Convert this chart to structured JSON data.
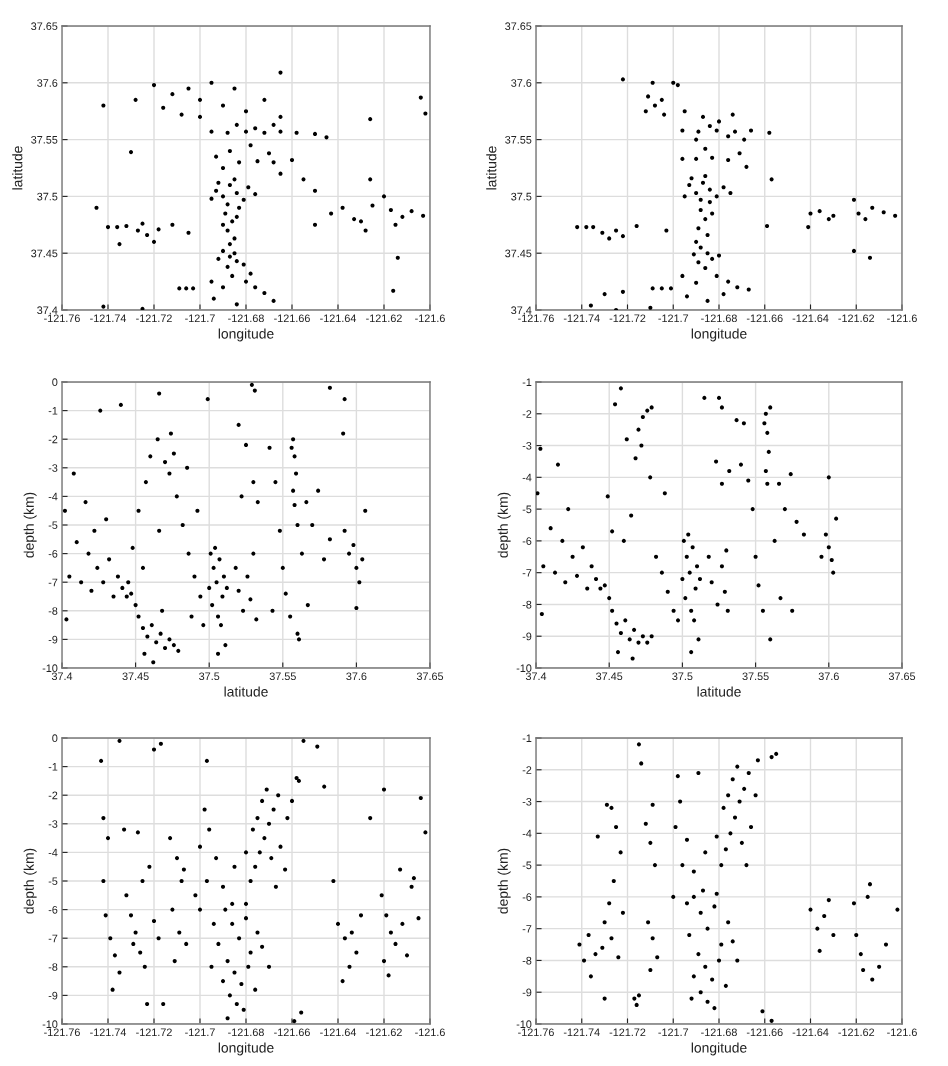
{
  "chart_data": [
    {
      "type": "scatter",
      "xlabel": "longitude",
      "ylabel": "latitude",
      "xlim": [
        -121.76,
        -121.6
      ],
      "ylim": [
        37.4,
        37.65
      ],
      "xticks": [
        -121.76,
        -121.74,
        -121.72,
        -121.7,
        -121.68,
        -121.66,
        -121.64,
        -121.62,
        -121.6
      ],
      "yticks": [
        37.4,
        37.45,
        37.5,
        37.55,
        37.6,
        37.65
      ],
      "grid": true,
      "marker": "circle",
      "series": [
        {
          "color": "#000000",
          "x": [
            -121.693,
            -121.69,
            -121.687,
            -121.684,
            -121.681,
            -121.688,
            -121.692,
            -121.685,
            -121.679,
            -121.695,
            -121.683,
            -121.676,
            -121.689,
            -121.686,
            -121.688,
            -121.685,
            -121.69,
            -121.684,
            -121.687,
            -121.69,
            -121.687,
            -121.684,
            -121.688,
            -121.681,
            -121.692,
            -121.685,
            -121.686,
            -121.68,
            -121.676,
            -121.672,
            -121.69,
            -121.694,
            -121.684,
            -121.668,
            -121.695,
            -121.678,
            -121.709,
            -121.706,
            -121.703,
            -121.69,
            -121.683,
            -121.675,
            -121.668,
            -121.66,
            -121.687,
            -121.678,
            -121.67,
            -121.693,
            -121.665,
            -121.655,
            -121.65,
            -121.695,
            -121.688,
            -121.68,
            -121.672,
            -121.665,
            -121.658,
            -121.676,
            -121.668,
            -121.684,
            -121.65,
            -121.645,
            -121.7,
            -121.705,
            -121.712,
            -121.716,
            -121.708,
            -121.695,
            -121.69,
            -121.68,
            -121.672,
            -121.685,
            -121.72,
            -121.728,
            -121.665,
            -121.7,
            -121.74,
            -121.736,
            -121.732,
            -121.727,
            -121.723,
            -121.725,
            -121.718,
            -121.712,
            -121.705,
            -121.745,
            -121.735,
            -121.72,
            -121.643,
            -121.638,
            -121.633,
            -121.63,
            -121.625,
            -121.62,
            -121.617,
            -121.612,
            -121.608,
            -121.603,
            -121.628,
            -121.615,
            -121.742,
            -121.73,
            -121.626,
            -121.626,
            -121.604,
            -121.602,
            -121.665,
            -121.614,
            -121.616,
            -121.742,
            -121.725,
            -121.65
          ],
          "values": [
            37.505,
            37.5,
            37.51,
            37.503,
            37.497,
            37.493,
            37.512,
            37.515,
            37.508,
            37.498,
            37.49,
            37.502,
            37.485,
            37.478,
            37.47,
            37.463,
            37.475,
            37.482,
            37.458,
            37.452,
            37.447,
            37.443,
            37.438,
            37.44,
            37.445,
            37.45,
            37.43,
            37.425,
            37.42,
            37.415,
            37.42,
            37.41,
            37.405,
            37.408,
            37.425,
            37.432,
            37.419,
            37.419,
            37.419,
            37.525,
            37.53,
            37.531,
            37.53,
            37.532,
            37.54,
            37.545,
            37.538,
            37.535,
            37.52,
            37.515,
            37.505,
            37.557,
            37.556,
            37.557,
            37.556,
            37.557,
            37.556,
            37.56,
            37.563,
            37.563,
            37.555,
            37.552,
            37.585,
            37.595,
            37.59,
            37.578,
            37.572,
            37.6,
            37.58,
            37.575,
            37.585,
            37.595,
            37.598,
            37.585,
            37.57,
            37.57,
            37.473,
            37.473,
            37.474,
            37.47,
            37.466,
            37.476,
            37.471,
            37.475,
            37.468,
            37.49,
            37.458,
            37.46,
            37.485,
            37.49,
            37.48,
            37.478,
            37.492,
            37.5,
            37.488,
            37.482,
            37.487,
            37.483,
            37.47,
            37.475,
            37.58,
            37.539,
            37.515,
            37.568,
            37.587,
            37.573,
            37.609,
            37.446,
            37.417,
            37.403,
            37.401,
            37.475
          ]
        }
      ]
    },
    {
      "type": "scatter",
      "xlabel": "longitude",
      "ylabel": "latitude",
      "xlim": [
        -121.76,
        -121.6
      ],
      "ylim": [
        37.4,
        37.65
      ],
      "xticks": [
        -121.76,
        -121.74,
        -121.72,
        -121.7,
        -121.68,
        -121.66,
        -121.64,
        -121.62,
        -121.6
      ],
      "yticks": [
        37.4,
        37.45,
        37.5,
        37.55,
        37.6,
        37.65
      ],
      "grid": true,
      "marker": "circle",
      "series": [
        {
          "color": "#000000",
          "x": [
            -121.7,
            -121.698,
            -121.709,
            -121.722,
            -121.711,
            -121.708,
            -121.712,
            -121.705,
            -121.704,
            -121.695,
            -121.687,
            -121.68,
            -121.674,
            -121.684,
            -121.696,
            -121.689,
            -121.681,
            -121.673,
            -121.666,
            -121.658,
            -121.676,
            -121.669,
            -121.69,
            -121.696,
            -121.69,
            -121.683,
            -121.676,
            -121.671,
            -121.686,
            -121.668,
            -121.657,
            -121.693,
            -121.69,
            -121.687,
            -121.684,
            -121.681,
            -121.688,
            -121.692,
            -121.678,
            -121.695,
            -121.684,
            -121.675,
            -121.686,
            -121.688,
            -121.686,
            -121.689,
            -121.685,
            -121.683,
            -121.69,
            -121.688,
            -121.685,
            -121.683,
            -121.689,
            -121.68,
            -121.691,
            -121.686,
            -121.681,
            -121.676,
            -121.672,
            -121.69,
            -121.694,
            -121.685,
            -121.667,
            -121.678,
            -121.696,
            -121.709,
            -121.705,
            -121.701,
            -121.742,
            -121.738,
            -121.735,
            -121.731,
            -121.728,
            -121.725,
            -121.722,
            -121.716,
            -121.703,
            -121.659,
            -121.641,
            -121.64,
            -121.636,
            -121.632,
            -121.63,
            -121.621,
            -121.619,
            -121.616,
            -121.613,
            -121.608,
            -121.603,
            -121.621,
            -121.614,
            -121.736,
            -121.73,
            -121.722,
            -121.71,
            -121.725
          ],
          "values": [
            37.6,
            37.598,
            37.6,
            37.603,
            37.588,
            37.58,
            37.575,
            37.585,
            37.572,
            37.575,
            37.57,
            37.566,
            37.572,
            37.562,
            37.558,
            37.557,
            37.558,
            37.557,
            37.558,
            37.556,
            37.553,
            37.55,
            37.55,
            37.533,
            37.533,
            37.534,
            37.532,
            37.538,
            37.542,
            37.526,
            37.515,
            37.51,
            37.503,
            37.512,
            37.506,
            37.5,
            37.497,
            37.516,
            37.508,
            37.5,
            37.495,
            37.503,
            37.518,
            37.488,
            37.48,
            37.472,
            37.466,
            37.485,
            37.46,
            37.455,
            37.45,
            37.445,
            37.442,
            37.448,
            37.449,
            37.437,
            37.43,
            37.425,
            37.42,
            37.424,
            37.412,
            37.408,
            37.418,
            37.414,
            37.43,
            37.419,
            37.419,
            37.419,
            37.473,
            37.473,
            37.473,
            37.468,
            37.463,
            37.47,
            37.465,
            37.474,
            37.47,
            37.474,
            37.473,
            37.485,
            37.487,
            37.48,
            37.483,
            37.497,
            37.485,
            37.48,
            37.49,
            37.486,
            37.483,
            37.452,
            37.446,
            37.404,
            37.414,
            37.416,
            37.402,
            37.4
          ]
        }
      ]
    },
    {
      "type": "scatter",
      "xlabel": "latitude",
      "ylabel": "depth (km)",
      "xlim": [
        37.4,
        37.65
      ],
      "ylim": [
        -10,
        0
      ],
      "xticks": [
        37.4,
        37.45,
        37.5,
        37.55,
        37.6,
        37.65
      ],
      "yticks": [
        -10,
        -9,
        -8,
        -7,
        -6,
        -5,
        -4,
        -3,
        -2,
        -1,
        0
      ],
      "grid": true,
      "marker": "circle",
      "series": [
        {
          "color": "#000000",
          "x": [
            37.402,
            37.405,
            37.408,
            37.41,
            37.413,
            37.416,
            37.418,
            37.42,
            37.422,
            37.424,
            37.403,
            37.428,
            37.43,
            37.432,
            37.435,
            37.438,
            37.441,
            37.444,
            37.447,
            37.45,
            37.445,
            37.452,
            37.455,
            37.458,
            37.461,
            37.464,
            37.467,
            37.47,
            37.473,
            37.476,
            37.479,
            37.456,
            37.462,
            37.468,
            37.448,
            37.452,
            37.457,
            37.46,
            37.465,
            37.47,
            37.473,
            37.474,
            37.476,
            37.478,
            37.482,
            37.486,
            37.49,
            37.494,
            37.496,
            37.488,
            37.485,
            37.492,
            37.466,
            37.455,
            37.501,
            37.503,
            37.505,
            37.507,
            37.509,
            37.502,
            37.506,
            37.51,
            37.504,
            37.508,
            37.512,
            37.5,
            37.511,
            37.506,
            37.518,
            37.52,
            37.523,
            37.526,
            37.528,
            37.532,
            37.53,
            37.522,
            37.525,
            37.53,
            37.533,
            37.529,
            37.52,
            37.557,
            37.558,
            37.559,
            37.557,
            37.558,
            37.56,
            37.556,
            37.545,
            37.548,
            37.55,
            37.552,
            37.555,
            37.56,
            37.563,
            37.566,
            37.57,
            37.574,
            37.578,
            37.582,
            37.567,
            37.561,
            37.541,
            37.543,
            37.592,
            37.595,
            37.598,
            37.6,
            37.602,
            37.604,
            37.606,
            37.6,
            37.591,
            37.582,
            37.592,
            37.466,
            37.426,
            37.44,
            37.499,
            37.531
          ],
          "values": [
            -4.5,
            -6.8,
            -3.2,
            -5.6,
            -7.0,
            -4.2,
            -6.0,
            -7.3,
            -5.2,
            -6.5,
            -8.3,
            -7.0,
            -4.8,
            -6.2,
            -7.5,
            -6.8,
            -7.2,
            -7.5,
            -7.4,
            -7.8,
            -7.0,
            -8.2,
            -8.6,
            -8.9,
            -8.5,
            -9.1,
            -8.8,
            -9.3,
            -9.0,
            -9.2,
            -9.4,
            -9.5,
            -9.8,
            -8.0,
            -5.8,
            -4.5,
            -3.5,
            -2.6,
            -2.0,
            -2.8,
            -3.2,
            -1.8,
            -2.5,
            -4.0,
            -5.0,
            -6.0,
            -6.8,
            -7.5,
            -8.5,
            -8.2,
            -3.0,
            -4.5,
            -5.2,
            -6.5,
            -6.0,
            -6.5,
            -7.0,
            -6.2,
            -7.5,
            -7.8,
            -8.2,
            -6.8,
            -5.8,
            -8.5,
            -7.2,
            -7.2,
            -9.2,
            -9.5,
            -6.5,
            -7.3,
            -8.0,
            -6.8,
            -7.6,
            -8.3,
            -6.0,
            -4.0,
            -2.2,
            -3.5,
            -4.2,
            -0.1,
            -1.5,
            -2.0,
            -2.6,
            -3.2,
            -3.8,
            -4.3,
            -5.0,
            -2.3,
            -3.5,
            -5.2,
            -6.5,
            -7.4,
            -8.2,
            -8.8,
            -6.0,
            -4.2,
            -5.0,
            -3.8,
            -6.2,
            -5.5,
            -7.8,
            -9.0,
            -2.3,
            -8.0,
            -5.2,
            -6.0,
            -5.7,
            -6.5,
            -7.0,
            -6.2,
            -4.5,
            -7.9,
            -1.8,
            -0.2,
            -0.6,
            -0.4,
            -1.0,
            -0.8,
            -0.6,
            -0.3
          ]
        }
      ]
    },
    {
      "type": "scatter",
      "xlabel": "latitude",
      "ylabel": "depth (km)",
      "xlim": [
        37.4,
        37.65
      ],
      "ylim": [
        -10,
        -1
      ],
      "xticks": [
        37.4,
        37.45,
        37.5,
        37.55,
        37.6,
        37.65
      ],
      "yticks": [
        -10,
        -9,
        -8,
        -7,
        -6,
        -5,
        -4,
        -3,
        -2,
        -1
      ],
      "grid": true,
      "marker": "circle",
      "series": [
        {
          "color": "#000000",
          "x": [
            37.401,
            37.403,
            37.405,
            37.41,
            37.413,
            37.415,
            37.418,
            37.42,
            37.422,
            37.425,
            37.428,
            37.432,
            37.435,
            37.404,
            37.438,
            37.441,
            37.444,
            37.447,
            37.45,
            37.452,
            37.455,
            37.458,
            37.461,
            37.464,
            37.467,
            37.47,
            37.473,
            37.476,
            37.479,
            37.456,
            37.466,
            37.458,
            37.454,
            37.47,
            37.473,
            37.476,
            37.479,
            37.472,
            37.468,
            37.462,
            37.478,
            37.449,
            37.452,
            37.46,
            37.465,
            37.482,
            37.486,
            37.49,
            37.494,
            37.497,
            37.488,
            37.501,
            37.503,
            37.505,
            37.507,
            37.509,
            37.502,
            37.506,
            37.51,
            37.504,
            37.508,
            37.512,
            37.5,
            37.511,
            37.506,
            37.518,
            37.52,
            37.524,
            37.527,
            37.529,
            37.531,
            37.53,
            37.523,
            37.527,
            37.532,
            37.515,
            37.525,
            37.527,
            37.537,
            37.542,
            37.54,
            37.557,
            37.558,
            37.559,
            37.557,
            37.558,
            37.556,
            37.56,
            37.548,
            37.55,
            37.552,
            37.555,
            37.56,
            37.563,
            37.566,
            37.57,
            37.574,
            37.578,
            37.583,
            37.567,
            37.575,
            37.545,
            37.6,
            37.605,
            37.598,
            37.6,
            37.602,
            37.603,
            37.595
          ],
          "values": [
            -4.5,
            -3.1,
            -6.8,
            -5.6,
            -7.0,
            -3.6,
            -6.0,
            -7.3,
            -5.0,
            -6.5,
            -7.1,
            -6.2,
            -7.5,
            -8.3,
            -6.8,
            -7.2,
            -7.5,
            -7.4,
            -7.8,
            -8.2,
            -8.6,
            -8.9,
            -8.5,
            -9.1,
            -8.8,
            -9.2,
            -9.0,
            -9.2,
            -9.0,
            -9.5,
            -9.7,
            -1.2,
            -1.7,
            -2.5,
            -2.1,
            -1.9,
            -1.8,
            -3.0,
            -3.4,
            -2.8,
            -4.0,
            -4.6,
            -5.7,
            -6.0,
            -5.2,
            -6.5,
            -7.0,
            -7.6,
            -8.2,
            -8.5,
            -4.5,
            -6.0,
            -6.5,
            -7.0,
            -6.2,
            -7.5,
            -7.8,
            -8.2,
            -6.8,
            -5.8,
            -8.5,
            -7.2,
            -7.2,
            -9.1,
            -9.5,
            -6.5,
            -7.3,
            -8.0,
            -6.8,
            -7.6,
            -8.2,
            -6.3,
            -3.5,
            -4.2,
            -3.8,
            -1.5,
            -1.5,
            -1.8,
            -2.2,
            -2.3,
            -3.6,
            -2.0,
            -2.6,
            -3.2,
            -3.8,
            -4.2,
            -2.3,
            -1.8,
            -5.0,
            -6.5,
            -7.4,
            -8.2,
            -9.1,
            -6.0,
            -4.2,
            -5.0,
            -3.9,
            -5.4,
            -5.8,
            -7.8,
            -8.2,
            -4.1,
            -4.0,
            -5.3,
            -5.8,
            -6.2,
            -6.6,
            -7.0,
            -6.5
          ]
        }
      ]
    },
    {
      "type": "scatter",
      "xlabel": "longitude",
      "ylabel": "depth (km)",
      "xlim": [
        -121.76,
        -121.6
      ],
      "ylim": [
        -10,
        0
      ],
      "xticks": [
        -121.76,
        -121.74,
        -121.72,
        -121.7,
        -121.68,
        -121.66,
        -121.64,
        -121.62,
        -121.6
      ],
      "yticks": [
        -10,
        -9,
        -8,
        -7,
        -6,
        -5,
        -4,
        -3,
        -2,
        -1,
        0
      ],
      "grid": true,
      "marker": "circle",
      "series": [
        {
          "color": "#000000",
          "x": [
            -121.689,
            -121.686,
            -121.683,
            -121.68,
            -121.678,
            -121.688,
            -121.685,
            -121.682,
            -121.679,
            -121.687,
            -121.684,
            -121.681,
            -121.69,
            -121.676,
            -121.675,
            -121.692,
            -121.694,
            -121.673,
            -121.686,
            -121.68,
            -121.67,
            -121.695,
            -121.688,
            -121.678,
            -121.676,
            -121.674,
            -121.672,
            -121.67,
            -121.668,
            -121.666,
            -121.673,
            -121.671,
            -121.677,
            -121.669,
            -121.665,
            -121.662,
            -121.66,
            -121.675,
            -121.68,
            -121.667,
            -121.663,
            -121.657,
            -121.658,
            -121.698,
            -121.696,
            -121.7,
            -121.693,
            -121.697,
            -121.69,
            -121.685,
            -121.7,
            -121.702,
            -121.697,
            -121.713,
            -121.71,
            -121.708,
            -121.712,
            -121.709,
            -121.706,
            -121.711,
            -121.707,
            -121.732,
            -121.73,
            -121.728,
            -121.726,
            -121.724,
            -121.722,
            -121.725,
            -121.729,
            -121.733,
            -121.727,
            -121.72,
            -121.718,
            -121.723,
            -121.716,
            -121.741,
            -121.739,
            -121.737,
            -121.735,
            -121.738,
            -121.742,
            -121.74,
            -121.742,
            -121.64,
            -121.637,
            -121.634,
            -121.632,
            -121.63,
            -121.635,
            -121.638,
            -121.642,
            -121.621,
            -121.619,
            -121.617,
            -121.615,
            -121.62,
            -121.618,
            -121.612,
            -121.608,
            -121.605,
            -121.61,
            -121.735,
            -121.743,
            -121.717,
            -121.72,
            -121.655,
            -121.649,
            -121.62,
            -121.604,
            -121.602,
            -121.626,
            -121.613,
            -121.607,
            -121.646,
            -121.656,
            -121.659
          ],
          "values": [
            -6.0,
            -6.5,
            -7.0,
            -6.3,
            -7.5,
            -7.8,
            -8.2,
            -8.6,
            -8.0,
            -9.0,
            -9.3,
            -9.5,
            -8.5,
            -8.8,
            -6.8,
            -7.2,
            -6.5,
            -7.3,
            -5.8,
            -5.8,
            -8.0,
            -8.0,
            -9.8,
            -5.0,
            -4.5,
            -4.0,
            -3.5,
            -3.0,
            -2.5,
            -2.0,
            -2.2,
            -1.8,
            -3.2,
            -4.2,
            -3.8,
            -2.8,
            -2.2,
            -2.8,
            -4.0,
            -5.2,
            -4.6,
            -1.5,
            -1.4,
            -2.5,
            -3.2,
            -3.8,
            -4.2,
            -5.0,
            -5.2,
            -4.5,
            -6.0,
            -5.5,
            -0.8,
            -3.5,
            -4.2,
            -5.0,
            -6.0,
            -6.8,
            -7.2,
            -7.8,
            -4.6,
            -5.5,
            -6.2,
            -6.8,
            -7.5,
            -8.0,
            -4.5,
            -5.0,
            -7.2,
            -3.2,
            -3.3,
            -6.4,
            -7.0,
            -9.3,
            -9.3,
            -6.2,
            -7.0,
            -7.6,
            -8.2,
            -8.8,
            -2.8,
            -3.5,
            -5.0,
            -6.5,
            -7.0,
            -6.8,
            -7.5,
            -6.2,
            -8.0,
            -8.5,
            -5.0,
            -5.5,
            -6.2,
            -6.8,
            -7.2,
            -7.8,
            -8.3,
            -6.5,
            -5.2,
            -6.3,
            -7.6,
            -0.1,
            -0.8,
            -0.2,
            -0.4,
            -0.1,
            -0.3,
            -1.8,
            -2.1,
            -3.3,
            -2.8,
            -4.6,
            -4.9,
            -1.7,
            -9.6,
            -9.9
          ]
        }
      ]
    },
    {
      "type": "scatter",
      "xlabel": "longitude",
      "ylabel": "depth (km)",
      "xlim": [
        -121.76,
        -121.6
      ],
      "ylim": [
        -10,
        -1
      ],
      "xticks": [
        -121.76,
        -121.74,
        -121.72,
        -121.7,
        -121.68,
        -121.66,
        -121.64,
        -121.62,
        -121.6
      ],
      "yticks": [
        -10,
        -9,
        -8,
        -7,
        -6,
        -5,
        -4,
        -3,
        -2,
        -1
      ],
      "grid": true,
      "marker": "circle",
      "series": [
        {
          "color": "#000000",
          "x": [
            -121.691,
            -121.688,
            -121.685,
            -121.682,
            -121.679,
            -121.689,
            -121.686,
            -121.683,
            -121.68,
            -121.688,
            -121.685,
            -121.682,
            -121.691,
            -121.677,
            -121.676,
            -121.693,
            -121.694,
            -121.674,
            -121.687,
            -121.681,
            -121.672,
            -121.692,
            -121.679,
            -121.677,
            -121.675,
            -121.673,
            -121.671,
            -121.669,
            -121.667,
            -121.674,
            -121.672,
            -121.678,
            -121.67,
            -121.666,
            -121.664,
            -121.663,
            -121.676,
            -121.681,
            -121.668,
            -121.655,
            -121.657,
            -121.698,
            -121.697,
            -121.699,
            -121.694,
            -121.696,
            -121.691,
            -121.686,
            -121.7,
            -121.689,
            -121.712,
            -121.71,
            -121.708,
            -121.711,
            -121.709,
            -121.707,
            -121.71,
            -121.715,
            -121.714,
            -121.709,
            -121.729,
            -121.727,
            -121.725,
            -121.723,
            -121.726,
            -121.728,
            -121.73,
            -121.727,
            -121.724,
            -121.722,
            -121.731,
            -121.741,
            -121.739,
            -121.737,
            -121.736,
            -121.734,
            -121.733,
            -121.73,
            -121.717,
            -121.715,
            -121.716,
            -121.64,
            -121.637,
            -121.634,
            -121.632,
            -121.63,
            -121.636,
            -121.621,
            -121.62,
            -121.618,
            -121.617,
            -121.615,
            -121.614,
            -121.613,
            -121.61,
            -121.607,
            -121.602,
            -121.661,
            -121.657
          ],
          "values": [
            -6.0,
            -6.5,
            -7.0,
            -6.3,
            -7.5,
            -7.8,
            -8.2,
            -8.6,
            -8.0,
            -9.0,
            -9.3,
            -9.5,
            -8.5,
            -8.8,
            -6.8,
            -7.2,
            -6.2,
            -7.4,
            -5.8,
            -5.9,
            -8.0,
            -9.2,
            -5.0,
            -4.5,
            -4.0,
            -3.5,
            -3.0,
            -2.6,
            -2.1,
            -2.3,
            -1.9,
            -3.2,
            -4.3,
            -3.8,
            -2.8,
            -1.7,
            -2.8,
            -4.1,
            -5.0,
            -1.5,
            -1.6,
            -2.2,
            -3.0,
            -3.8,
            -4.2,
            -5.0,
            -5.2,
            -4.6,
            -6.0,
            -2.1,
            -3.7,
            -4.3,
            -5.0,
            -6.8,
            -7.3,
            -7.9,
            -8.3,
            -1.2,
            -1.8,
            -3.1,
            -3.1,
            -3.2,
            -3.8,
            -4.6,
            -5.5,
            -6.2,
            -6.8,
            -7.3,
            -7.9,
            -6.5,
            -7.6,
            -7.5,
            -8.0,
            -7.2,
            -8.5,
            -7.8,
            -4.1,
            -9.2,
            -9.2,
            -9.1,
            -9.4,
            -6.4,
            -7.0,
            -6.6,
            -6.1,
            -7.2,
            -7.7,
            -6.2,
            -7.2,
            -7.8,
            -8.3,
            -6.0,
            -5.6,
            -8.6,
            -8.2,
            -7.5,
            -6.4,
            -9.6,
            -9.9
          ]
        }
      ]
    }
  ]
}
